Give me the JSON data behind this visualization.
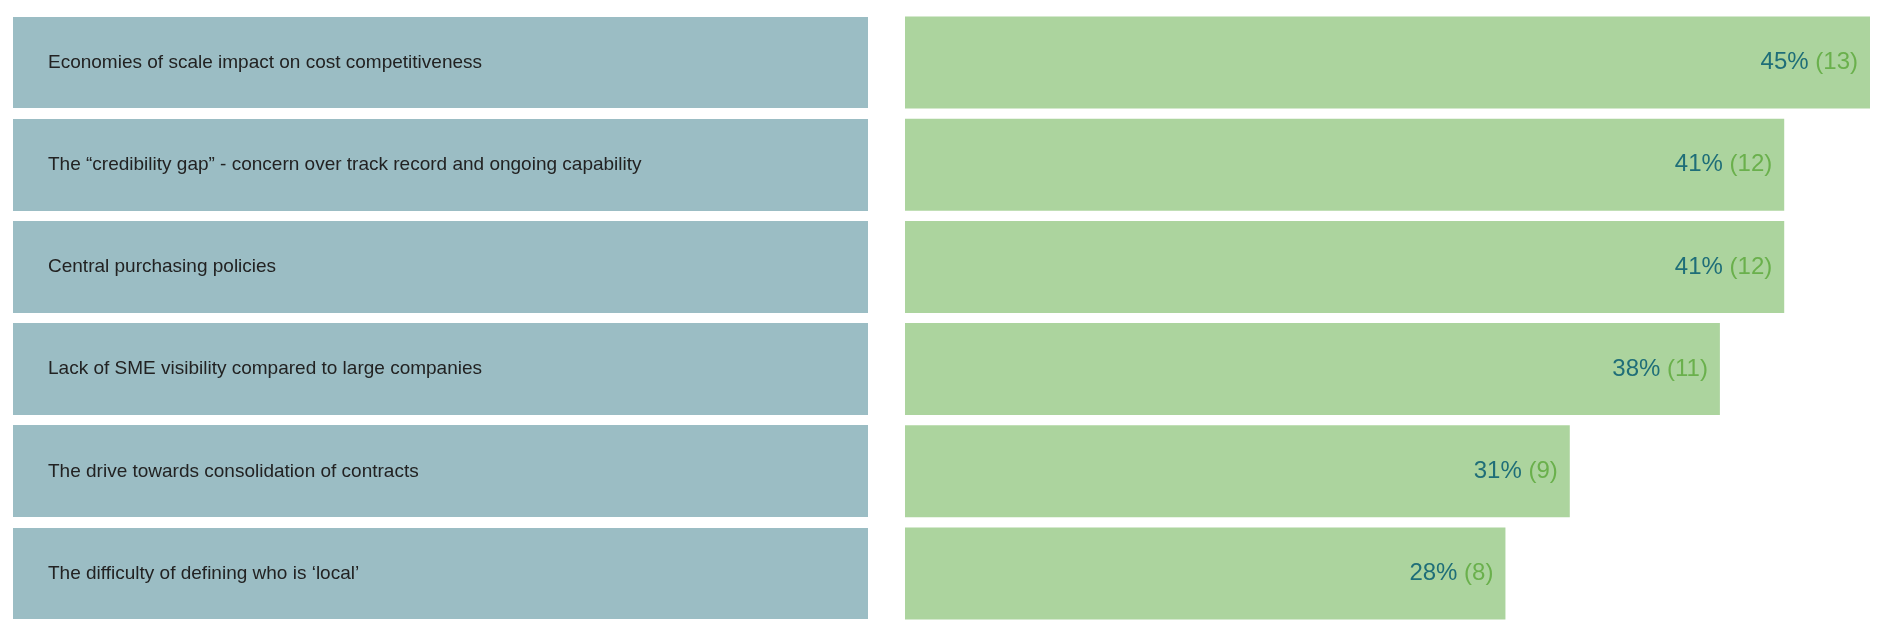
{
  "chart_data": {
    "type": "bar",
    "orientation": "horizontal",
    "categories": [
      "Economies of scale impact on cost competitiveness",
      "The “credibility gap” - concern over track record and ongoing capability",
      "Central purchasing policies",
      "Lack of SME visibility compared to large companies",
      "The drive towards consolidation of contracts",
      "The difficulty of defining who is ‘local’"
    ],
    "values": [
      45,
      41,
      41,
      38,
      31,
      28
    ],
    "value_labels": [
      "45% (13)",
      "41% (12)",
      "41% (12)",
      "38% (11)",
      "31% (9)",
      "28% (8)"
    ],
    "color": "#acd49e",
    "xlim": [
      0,
      45
    ],
    "tick_labels": "y",
    "legend": false
  }
}
